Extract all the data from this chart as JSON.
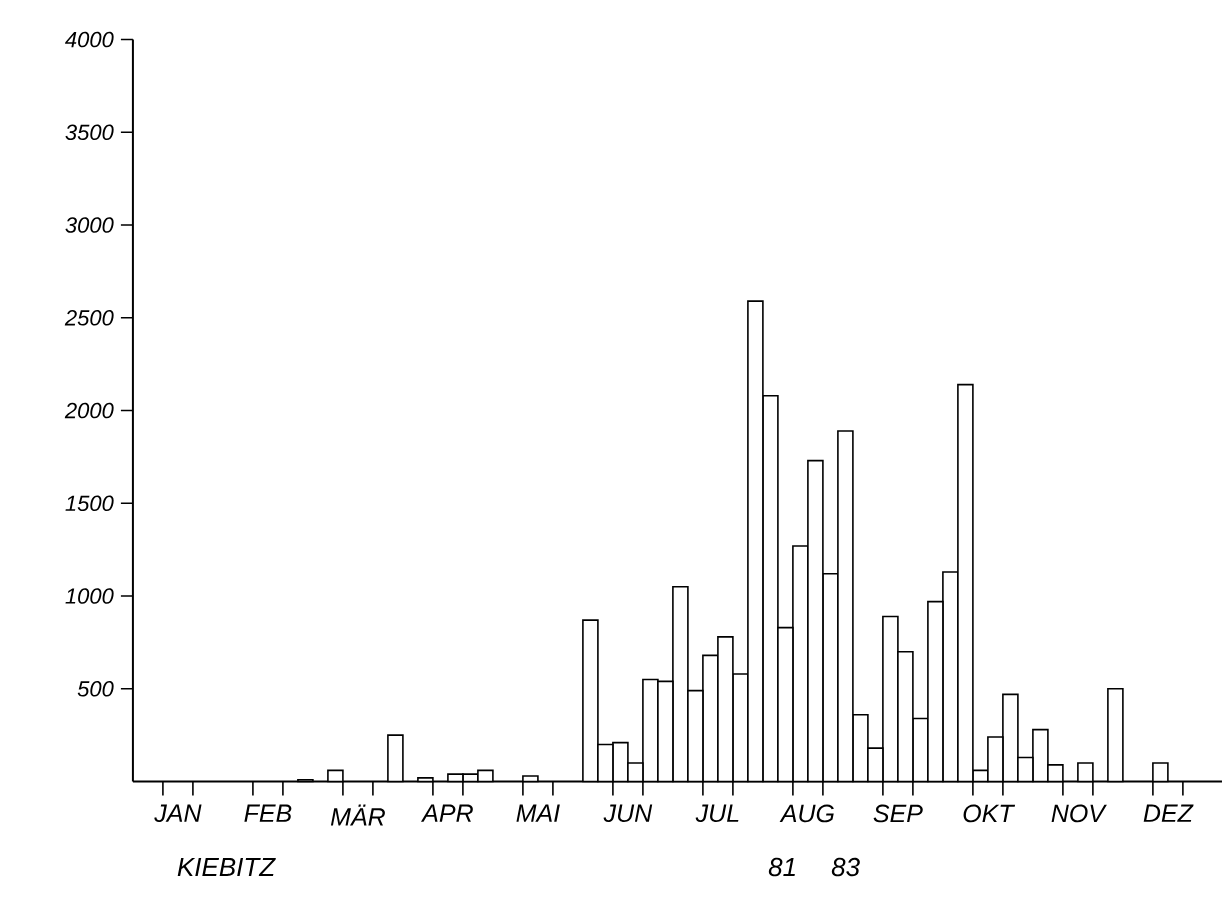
{
  "chart_data": {
    "type": "bar",
    "categories": [
      null,
      "JAN",
      null,
      null,
      "FEB",
      null,
      null,
      "MÄR",
      null,
      null,
      "APR",
      null,
      null,
      "MAI",
      null,
      null,
      "JUN",
      null,
      null,
      "JUL",
      null,
      null,
      "AUG",
      null,
      null,
      "SEP",
      null,
      null,
      "OKT",
      null,
      null,
      "NOV",
      null,
      null,
      "DEZ",
      null
    ],
    "series": [
      {
        "name": "81",
        "color": "#ffffff",
        "values": [
          null,
          null,
          null,
          null,
          null,
          null,
          null,
          null,
          null,
          null,
          null,
          40,
          null,
          30,
          null,
          870,
          210,
          550,
          1050,
          680,
          580,
          2080,
          1270,
          1120,
          360,
          890,
          340,
          1130,
          60,
          470,
          280,
          null,
          null,
          null,
          100,
          null
        ]
      },
      {
        "name": "83",
        "color": "#ffffff",
        "values": [
          null,
          null,
          null,
          null,
          null,
          10,
          60,
          null,
          250,
          20,
          40,
          60,
          null,
          null,
          null,
          200,
          100,
          540,
          490,
          780,
          2590,
          830,
          1730,
          1890,
          180,
          700,
          970,
          2140,
          240,
          130,
          90,
          100,
          500,
          null,
          null,
          null
        ]
      }
    ],
    "ylim": [
      0,
      4000
    ],
    "yticks": [
      500,
      1000,
      1500,
      2000,
      2500,
      3000,
      3500,
      4000
    ],
    "annotations": [
      "KIEBITZ"
    ]
  }
}
